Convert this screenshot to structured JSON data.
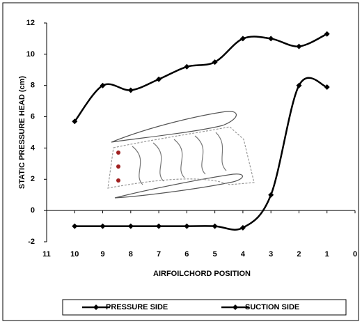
{
  "chart_data": {
    "type": "line",
    "y_label": "STATIC PRESSURE HEAD (cm)",
    "x_label": "AIRFOILCHORD POSITION",
    "x": [
      10,
      9,
      8,
      7,
      6,
      5,
      4,
      3,
      2,
      1
    ],
    "series": [
      {
        "name": "PRESSURE SIDE",
        "color": "#000000",
        "values": [
          5.7,
          8.0,
          7.7,
          8.4,
          9.2,
          9.5,
          11.0,
          11.0,
          10.5,
          11.3
        ]
      },
      {
        "name": "SUCTION SIDE",
        "color": "#000000",
        "values": [
          -1.0,
          -1.0,
          -1.0,
          -1.0,
          -1.0,
          -1.0,
          -1.1,
          1.0,
          8.0,
          7.9
        ]
      }
    ],
    "xlim": [
      11,
      0
    ],
    "xticks": [
      11,
      10,
      9,
      8,
      7,
      6,
      5,
      4,
      3,
      2,
      1,
      0
    ],
    "ylim": [
      -2,
      12
    ],
    "yticks": [
      -2,
      0,
      2,
      4,
      6,
      8,
      10,
      12
    ],
    "legend": "bottom"
  }
}
